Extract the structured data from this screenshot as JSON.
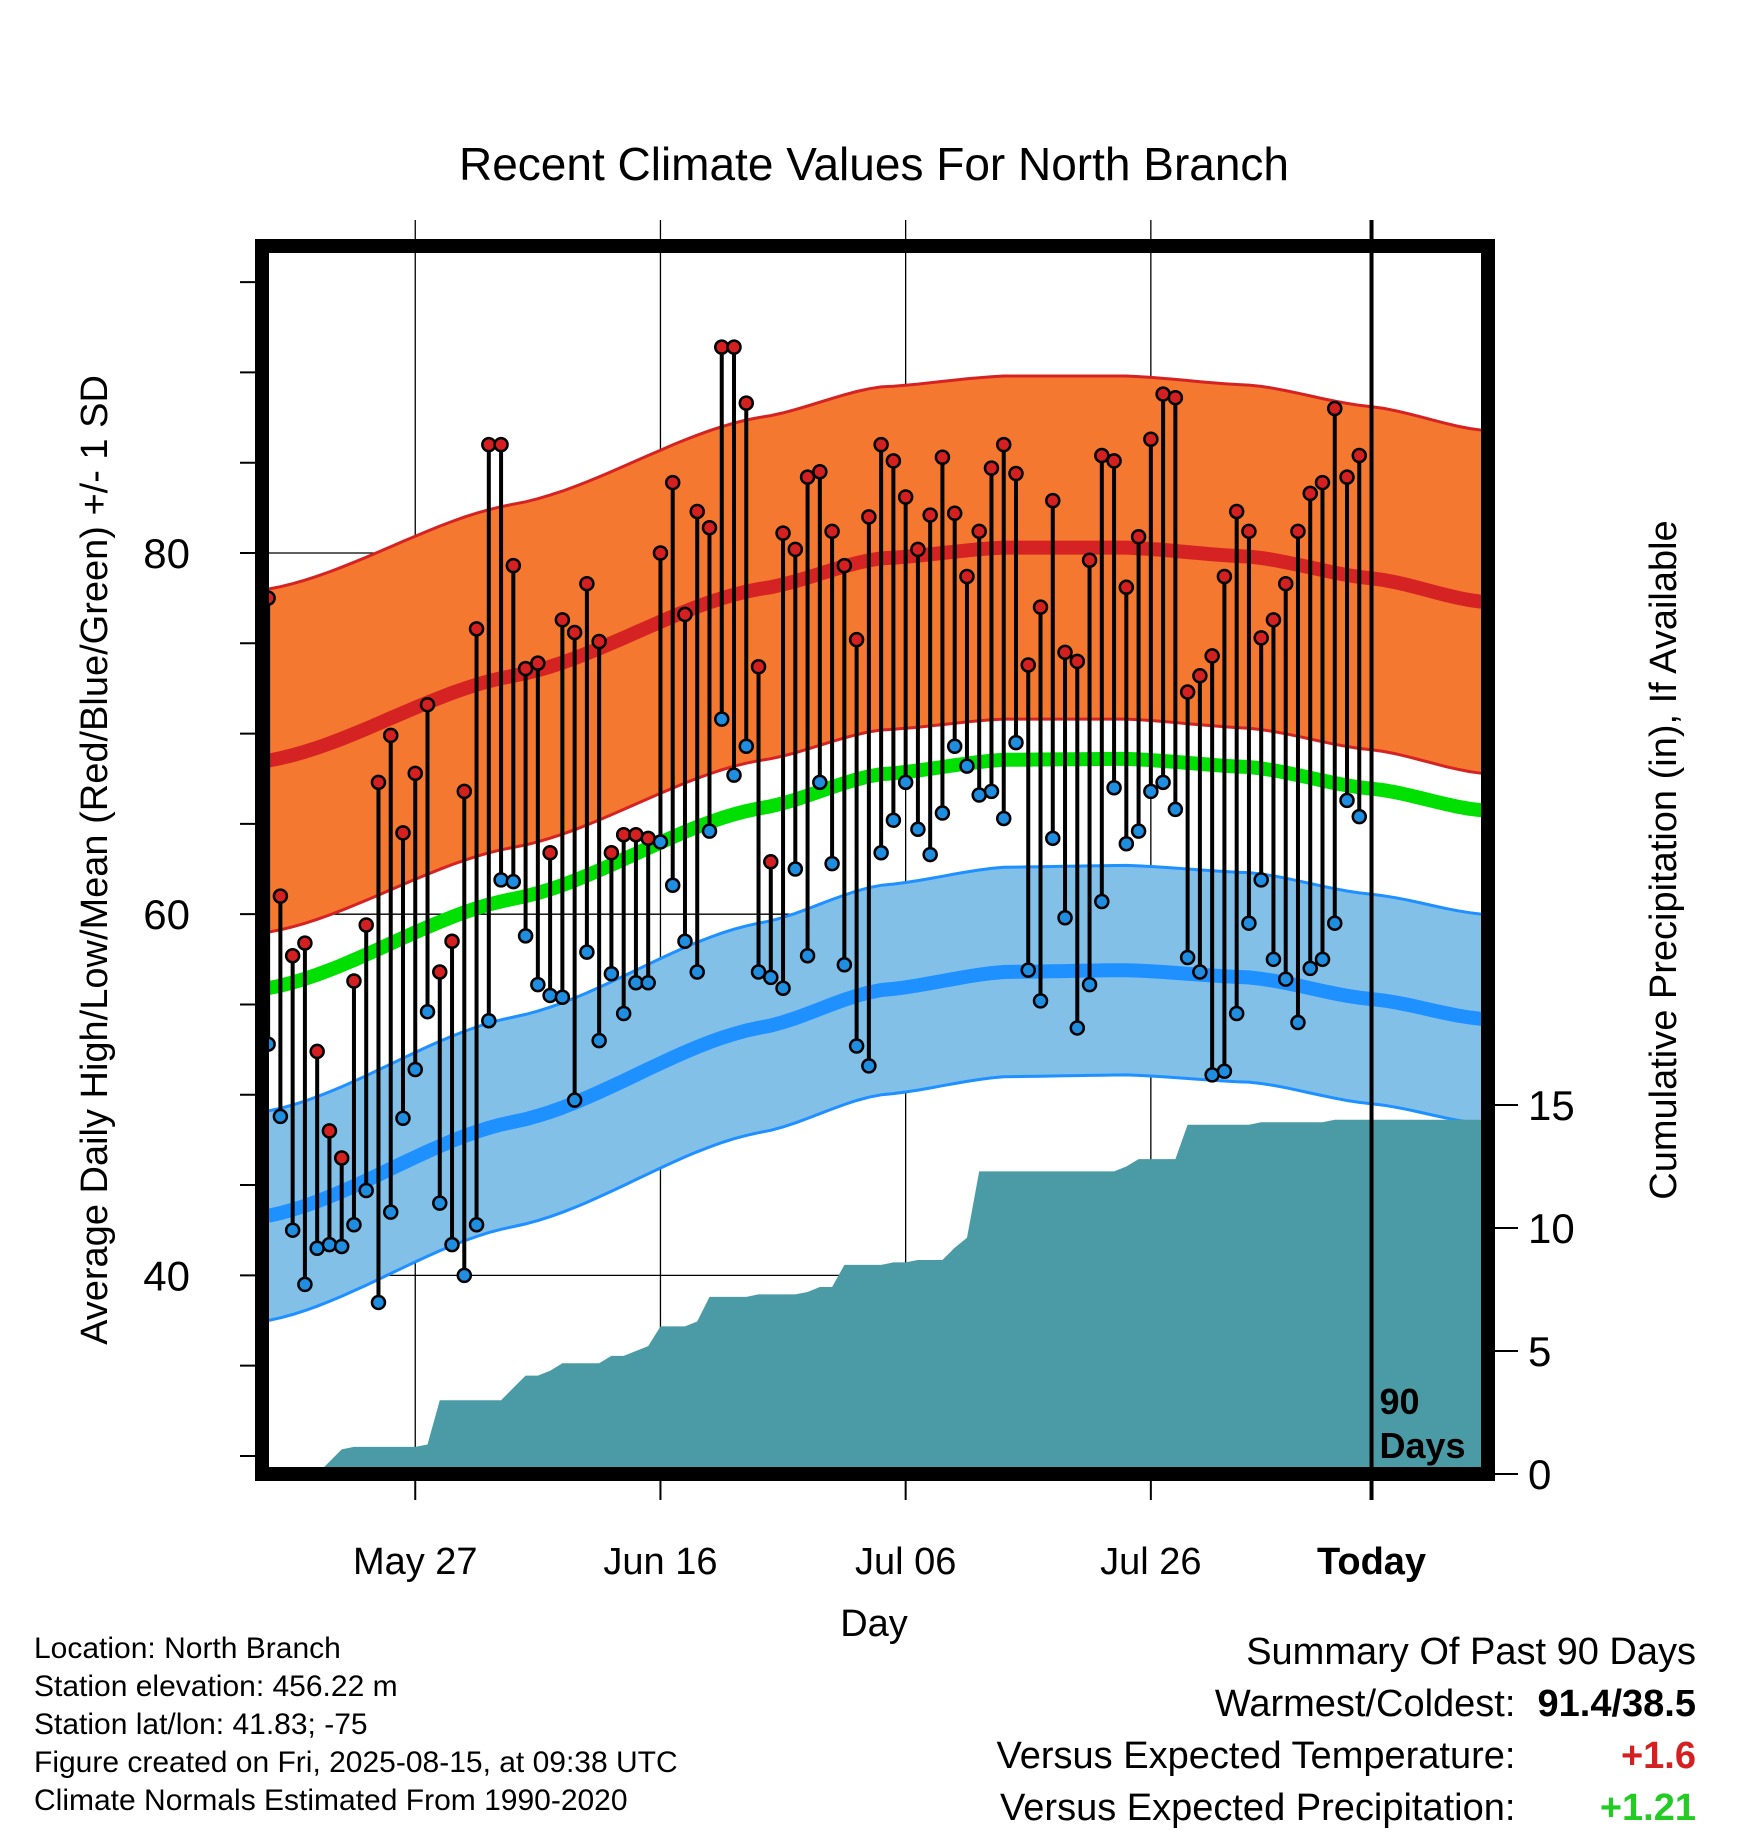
{
  "chart_data": {
    "type": "line",
    "title": "Recent Climate Values For North Branch",
    "xlabel": "Day",
    "ylabel": "Average Daily High/Low/Mean (Red/Blue/Green) +/- 1 SD",
    "y2label": "Cumulative Precipitation (in), If Available",
    "x_tick_labels": [
      "May 27",
      "Jun 16",
      "Jul 06",
      "Jul 26",
      "Today"
    ],
    "y_ticks": [
      "40",
      "60",
      "80"
    ],
    "y2_ticks": [
      "0",
      "5",
      "10",
      "15"
    ],
    "ylim": [
      29,
      97
    ],
    "y2lim": [
      0,
      45
    ],
    "xlim": [
      -0.5,
      99.5
    ],
    "today_index": 90,
    "today_label": "90 Days",
    "grid": true,
    "colors": {
      "high": "#d52323",
      "high_band": "#f47830",
      "low": "#1e90ff",
      "low_band": "#82c0e8",
      "mean": "#00e000",
      "precip": "#4a9ba5",
      "high_point": "#d42020",
      "low_point": "#1f8ee0"
    },
    "normal_high": {
      "anchors": [
        [
          0,
          68.5
        ],
        [
          20,
          73.2
        ],
        [
          40,
          78.0
        ],
        [
          50,
          79.7
        ],
        [
          60,
          80.3
        ],
        [
          70,
          80.3
        ],
        [
          80,
          79.8
        ],
        [
          90,
          78.6
        ],
        [
          99,
          77.3
        ]
      ]
    },
    "normal_low": {
      "anchors": [
        [
          0,
          43.3
        ],
        [
          20,
          48.5
        ],
        [
          40,
          53.7
        ],
        [
          50,
          55.8
        ],
        [
          60,
          56.8
        ],
        [
          70,
          56.9
        ],
        [
          80,
          56.5
        ],
        [
          90,
          55.3
        ],
        [
          99,
          54.2
        ]
      ]
    },
    "high_sd": 9.5,
    "low_sd": 5.8,
    "highs": [
      77.5,
      61,
      57.7,
      58.4,
      52.4,
      48,
      46.5,
      56.3,
      59.4,
      67.3,
      69.9,
      64.5,
      67.8,
      71.6,
      56.8,
      58.5,
      66.8,
      75.8,
      86,
      86,
      79.3,
      73.6,
      73.9,
      63.4,
      76.3,
      75.6,
      78.3,
      75.1,
      63.4,
      64.4,
      64.4,
      64.2,
      80,
      83.9,
      76.6,
      82.3,
      81.4,
      91.4,
      91.4,
      88.3,
      73.7,
      62.9,
      81.1,
      80.2,
      84.2,
      84.5,
      81.2,
      79.3,
      75.2,
      82,
      86,
      85.1,
      83.1,
      80.2,
      82.1,
      85.3,
      82.2,
      78.7,
      81.2,
      84.7,
      86,
      84.4,
      73.8,
      77,
      82.9,
      74.5,
      74,
      79.6,
      85.4,
      85.1,
      78.1,
      80.9,
      86.3,
      88.8,
      88.6,
      72.3,
      73.2,
      74.3,
      78.7,
      82.3,
      81.2,
      75.3,
      76.3,
      78.3,
      81.2,
      83.3,
      83.9,
      88,
      84.2,
      85.4
    ],
    "lows": [
      52.8,
      48.8,
      42.5,
      39.5,
      41.5,
      41.7,
      41.6,
      42.8,
      44.7,
      38.5,
      43.5,
      48.7,
      51.4,
      54.6,
      44,
      41.7,
      40,
      42.8,
      54.1,
      61.9,
      61.8,
      58.8,
      56.1,
      55.5,
      55.4,
      49.7,
      57.9,
      53,
      56.7,
      54.5,
      56.2,
      56.2,
      64,
      61.6,
      58.5,
      56.8,
      64.6,
      70.8,
      67.7,
      69.3,
      56.8,
      56.5,
      55.9,
      62.5,
      57.7,
      67.3,
      62.8,
      57.2,
      52.7,
      51.6,
      63.4,
      65.2,
      67.3,
      64.7,
      63.3,
      65.6,
      69.3,
      68.2,
      66.6,
      66.8,
      65.3,
      69.5,
      56.9,
      55.2,
      64.2,
      59.8,
      53.7,
      56.1,
      60.7,
      67,
      63.9,
      64.6,
      66.8,
      67.3,
      65.8,
      57.6,
      56.8,
      51.1,
      51.3,
      54.5,
      59.5,
      61.9,
      57.5,
      56.4,
      54,
      57,
      57.5,
      59.5,
      66.3,
      65.4
    ],
    "precip_cumulative": [
      0,
      0,
      0,
      0,
      0,
      0.5,
      1,
      1.1,
      1.1,
      1.1,
      1.1,
      1.1,
      1.1,
      1.2,
      3,
      3,
      3,
      3,
      3,
      3,
      3.5,
      4,
      4,
      4.2,
      4.5,
      4.5,
      4.5,
      4.5,
      4.8,
      4.8,
      5,
      5.2,
      6,
      6,
      6,
      6.2,
      7.2,
      7.2,
      7.2,
      7.2,
      7.3,
      7.3,
      7.3,
      7.3,
      7.4,
      7.6,
      7.6,
      8.5,
      8.5,
      8.5,
      8.5,
      8.6,
      8.6,
      8.7,
      8.7,
      8.7,
      9.2,
      9.6,
      12.3,
      12.3,
      12.3,
      12.3,
      12.3,
      12.3,
      12.3,
      12.3,
      12.3,
      12.3,
      12.3,
      12.3,
      12.5,
      12.8,
      12.8,
      12.8,
      12.8,
      14.2,
      14.2,
      14.2,
      14.2,
      14.2,
      14.2,
      14.3,
      14.3,
      14.3,
      14.3,
      14.3,
      14.3,
      14.4,
      14.4,
      14.4,
      14.4,
      14.4,
      14.4,
      14.4,
      14.4,
      14.4,
      14.4,
      14.4,
      14.4,
      14.4
    ]
  },
  "meta": {
    "location": "Location: North Branch",
    "elevation": "Station elevation: 456.22 m",
    "latlon": "Station lat/lon: 41.83; -75",
    "created": "Figure created on Fri, 2025-08-15, at 09:38 UTC",
    "normals": "Climate Normals Estimated From 1990-2020"
  },
  "summary": {
    "title": "Summary Of Past 90 Days",
    "warmest_label": "Warmest/Coldest:",
    "warmest_value": "91.4/38.5",
    "temp_label": "Versus Expected Temperature:",
    "temp_value": "+1.6",
    "temp_color": "#d42020",
    "precip_label": "Versus Expected Precipitation:",
    "precip_value": "+1.21",
    "precip_color": "#22cc22"
  }
}
